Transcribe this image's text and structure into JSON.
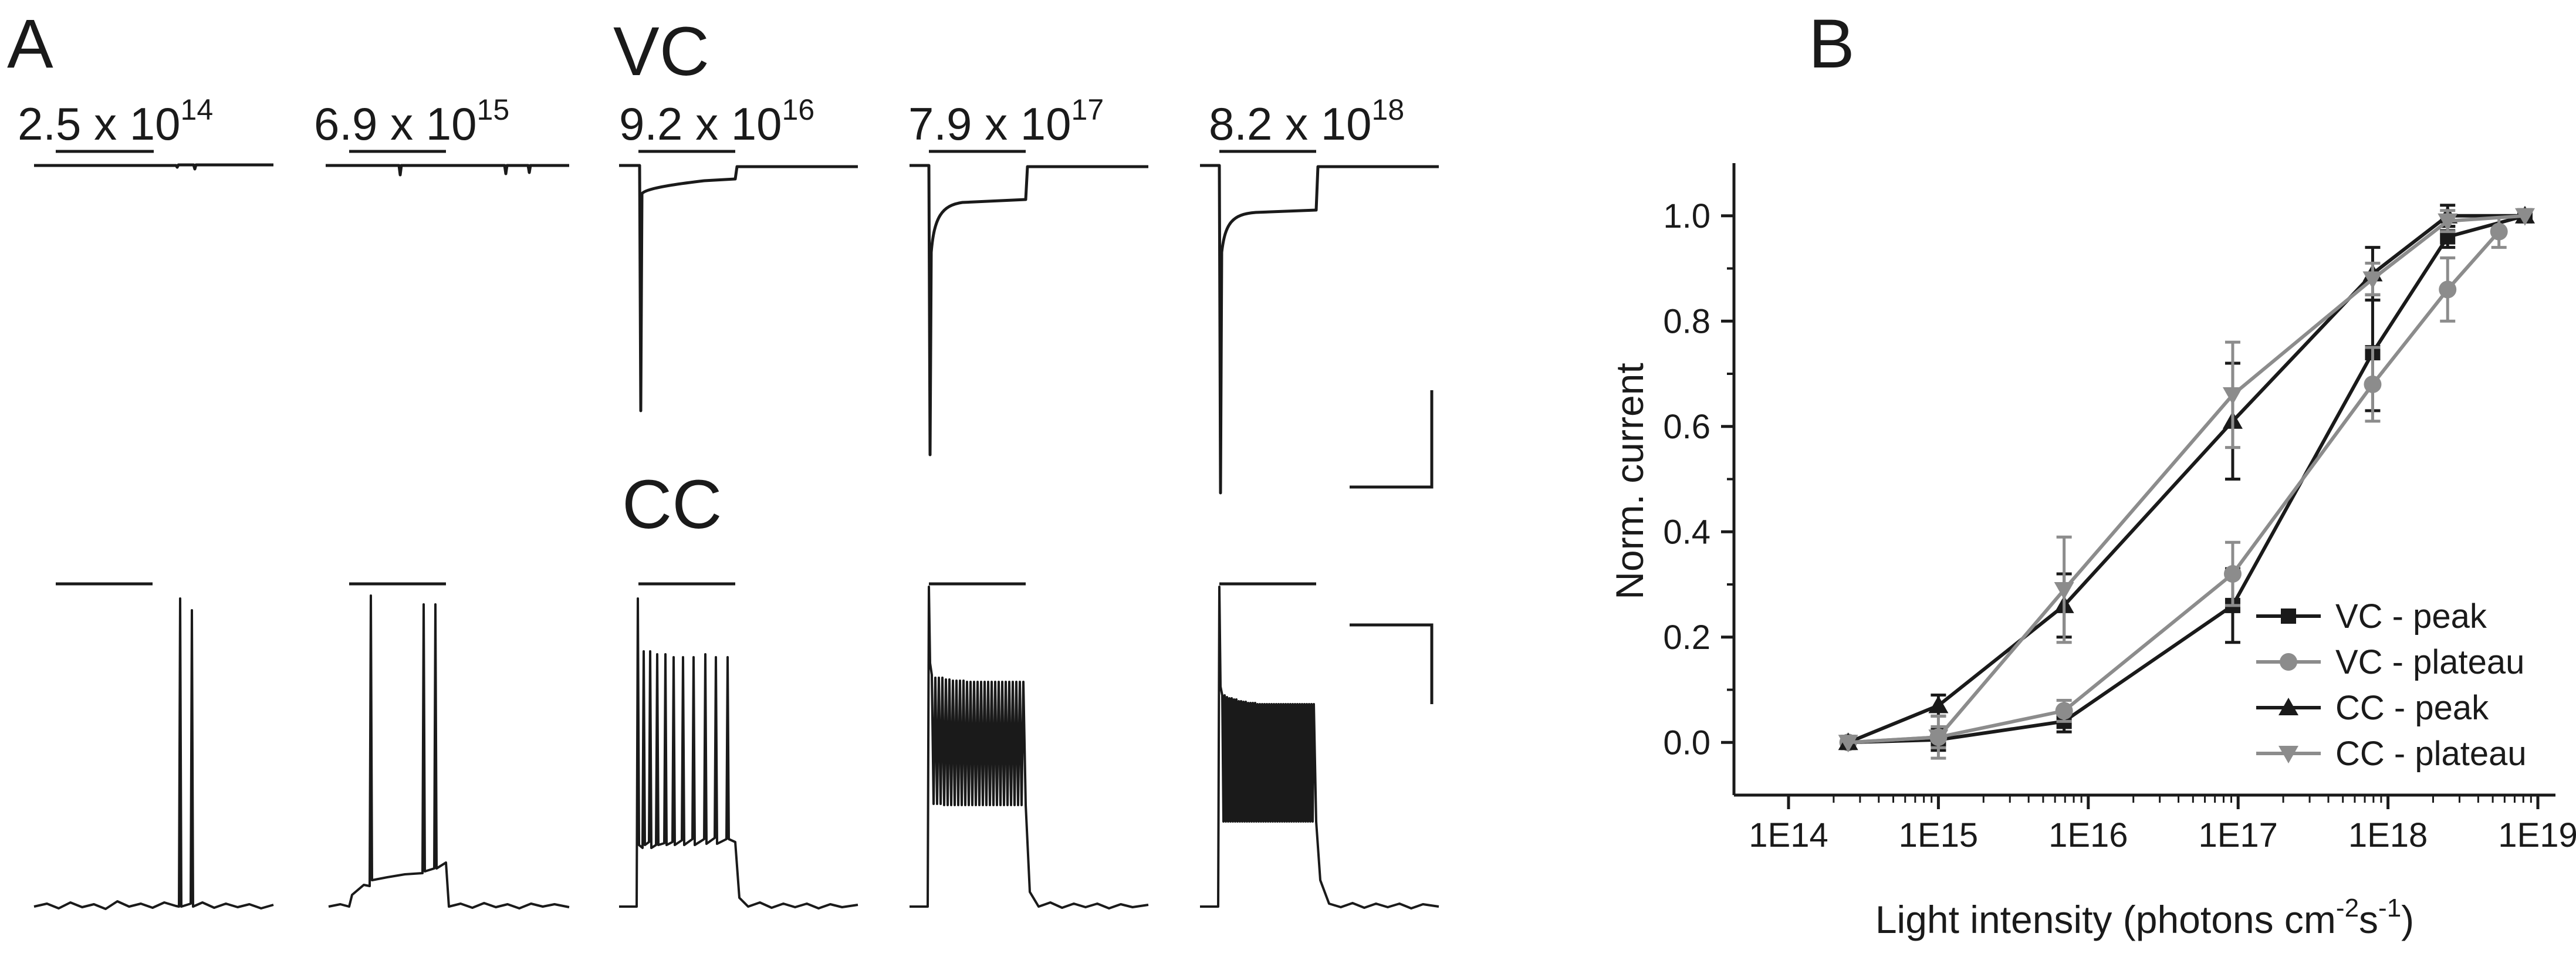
{
  "panel_a": {
    "label": "A",
    "vc_label": "VC",
    "cc_label": "CC",
    "intensities": [
      {
        "mantissa": "2.5 x 10",
        "exponent": "14"
      },
      {
        "mantissa": "6.9 x 10",
        "exponent": "15"
      },
      {
        "mantissa": "9.2 x 10",
        "exponent": "16"
      },
      {
        "mantissa": "7.9 x 10",
        "exponent": "17"
      },
      {
        "mantissa": "8.2 x 10",
        "exponent": "18"
      }
    ]
  },
  "panel_b": {
    "label": "B",
    "ylabel": "Norm. current",
    "xlabel_main": "Light intensity (photons cm",
    "xlabel_sup1": "-2",
    "xlabel_mid": "s",
    "xlabel_sup2": "-1",
    "xlabel_end": ")"
  },
  "colors": {
    "black": "#1a1a1a",
    "gray": "#8c8c8c"
  },
  "chart_data": {
    "type": "line",
    "xlabel": "Light intensity (photons cm-2s-1)",
    "ylabel": "Norm. current",
    "x_scale": "log",
    "xlim": [
      100000000000000.0,
      1e+19
    ],
    "ylim": [
      -0.1,
      1.1
    ],
    "x_ticks": [
      100000000000000.0,
      1000000000000000.0,
      1e+16,
      1e+17,
      1e+18,
      1e+19
    ],
    "x_tick_labels": [
      "1E14",
      "1E15",
      "1E16",
      "1E17",
      "1E18",
      "1E19"
    ],
    "y_ticks": [
      0.0,
      0.2,
      0.4,
      0.6,
      0.8,
      1.0
    ],
    "y_tick_labels": [
      "0.0",
      "0.2",
      "0.4",
      "0.6",
      "0.8",
      "1.0"
    ],
    "legend_position": "bottom-right",
    "series": [
      {
        "name": "VC - peak",
        "marker": "square",
        "color": "#1a1a1a",
        "x": [
          250000000000000.0,
          1000000000000000.0,
          6900000000000000.0,
          9.2e+16,
          7.9e+17,
          2.5e+18,
          8.2e+18
        ],
        "y": [
          0.0,
          0.005,
          0.04,
          0.26,
          0.74,
          0.96,
          1.0
        ],
        "err": [
          0.0,
          0.02,
          0.02,
          0.07,
          0.11,
          0.02,
          0.0
        ]
      },
      {
        "name": "VC - plateau",
        "marker": "circle",
        "color": "#8c8c8c",
        "x": [
          250000000000000.0,
          1000000000000000.0,
          6900000000000000.0,
          9.2e+16,
          7.9e+17,
          2.5e+18,
          5.5e+18
        ],
        "y": [
          0.0,
          0.01,
          0.06,
          0.32,
          0.68,
          0.86,
          0.97
        ],
        "err": [
          0.0,
          0.02,
          0.02,
          0.06,
          0.07,
          0.06,
          0.03
        ]
      },
      {
        "name": "CC - peak",
        "marker": "triangle-up",
        "color": "#1a1a1a",
        "x": [
          250000000000000.0,
          1000000000000000.0,
          6900000000000000.0,
          9.2e+16,
          7.9e+17,
          2.5e+18,
          8.2e+18
        ],
        "y": [
          0.0,
          0.07,
          0.26,
          0.61,
          0.89,
          1.0,
          1.0
        ],
        "err": [
          0.0,
          0.02,
          0.06,
          0.11,
          0.05,
          0.02,
          0.0
        ]
      },
      {
        "name": "CC - plateau",
        "marker": "triangle-down",
        "color": "#8c8c8c",
        "x": [
          250000000000000.0,
          1000000000000000.0,
          6900000000000000.0,
          9.2e+16,
          7.9e+17,
          2.5e+18,
          8.2e+18
        ],
        "y": [
          0.0,
          0.01,
          0.29,
          0.66,
          0.88,
          0.99,
          1.0
        ],
        "err": [
          0.0,
          0.04,
          0.1,
          0.1,
          0.03,
          0.02,
          0.0
        ]
      }
    ]
  }
}
